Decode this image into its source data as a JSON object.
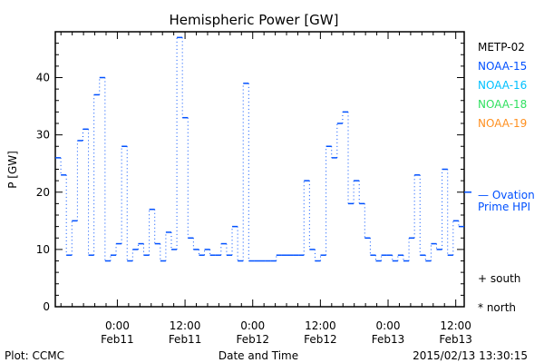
{
  "chart_data": {
    "type": "line",
    "title": "Hemispheric Power [GW]",
    "ylabel": "P [GW]",
    "xlabel": "Date and Time",
    "ylim": [
      0,
      48
    ],
    "yticks": [
      0,
      10,
      20,
      30,
      40
    ],
    "xticks": [
      {
        "hour": 11,
        "l1": "0:00",
        "l2": "Feb11"
      },
      {
        "hour": 23,
        "l1": "12:00",
        "l2": "Feb11"
      },
      {
        "hour": 35,
        "l1": "0:00",
        "l2": "Feb12"
      },
      {
        "hour": 47,
        "l1": "12:00",
        "l2": "Feb12"
      },
      {
        "hour": 59,
        "l1": "0:00",
        "l2": "Feb13"
      },
      {
        "hour": 71,
        "l1": "12:00",
        "l2": "Feb13"
      }
    ],
    "x_hours_range": [
      0,
      72.5
    ],
    "series": [
      {
        "name": "NOAA-15",
        "color": "#0050ff",
        "values": [
          26,
          23,
          9,
          15,
          29,
          31,
          9,
          37,
          40,
          8,
          9,
          11,
          28,
          8,
          10,
          11,
          9,
          17,
          11,
          8,
          13,
          10,
          47,
          33,
          12,
          10,
          9,
          10,
          9,
          9,
          11,
          9,
          14,
          8,
          39,
          8,
          8,
          8,
          8,
          8,
          9,
          9,
          9,
          9,
          9,
          22,
          10,
          8,
          9,
          28,
          26,
          32,
          34,
          18,
          22,
          18,
          12,
          9,
          8,
          9,
          9,
          8,
          9,
          8,
          12,
          23,
          9,
          8,
          11,
          10,
          24,
          9,
          15,
          14
        ]
      }
    ],
    "ovation": {
      "label1": "— Ovation",
      "label2": "Prime HPI",
      "value": 20
    },
    "legend": [
      {
        "name": "METP-02",
        "color": "#000000"
      },
      {
        "name": "NOAA-15",
        "color": "#0050ff"
      },
      {
        "name": "NOAA-16",
        "color": "#00c0ff"
      },
      {
        "name": "NOAA-18",
        "color": "#30e060"
      },
      {
        "name": "NOAA-19",
        "color": "#ff9020"
      }
    ],
    "markers": {
      "south": "+ south",
      "north": "* north"
    }
  },
  "footer": {
    "left": "Plot: CCMC",
    "center": "Date and Time",
    "right": "2015/02/13 13:30:15"
  }
}
